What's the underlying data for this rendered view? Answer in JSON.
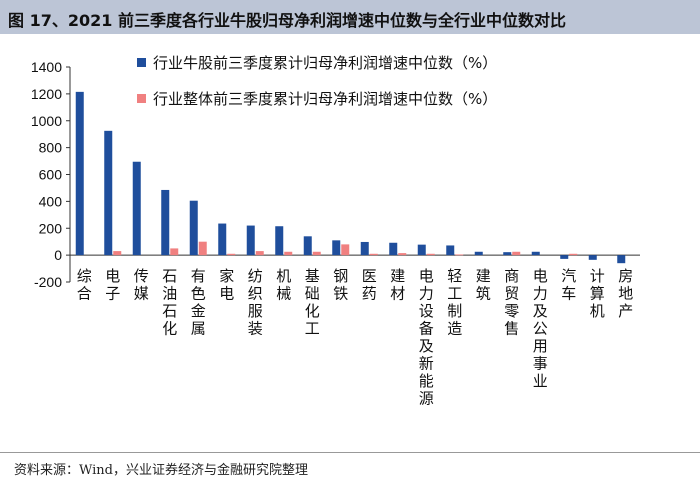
{
  "figure_title": "图 17、2021 前三季度各行业牛股归母净利润增速中位数与全行业中位数对比",
  "source": "资料来源：Wind，兴业证券经济与金融研究院整理",
  "chart_data": {
    "type": "bar",
    "title": "",
    "xlabel": "",
    "ylabel": "",
    "ylim": [
      -200,
      1400
    ],
    "yticks": [
      -200,
      0,
      200,
      400,
      600,
      800,
      1000,
      1200,
      1400
    ],
    "grid": false,
    "legend_position": "top-center",
    "categories": [
      "综合",
      "电子",
      "传媒",
      "石油石化",
      "有色金属",
      "家电",
      "纺织服装",
      "机械",
      "基础化工",
      "钢铁",
      "医药",
      "建材",
      "电力设备及新能源",
      "轻工制造",
      "建筑",
      "商贸零售",
      "电力及公用事业",
      "汽车",
      "计算机",
      "房地产"
    ],
    "series": [
      {
        "name": "行业牛股前三季度累计归母净利润增速中位数（%）",
        "color": "#1f4e9c",
        "values": [
          1215,
          925,
          695,
          485,
          405,
          235,
          220,
          215,
          140,
          110,
          98,
          92,
          78,
          72,
          25,
          22,
          25,
          -28,
          -35,
          -60
        ]
      },
      {
        "name": "行业整体前三季度累计归母净利润增速中位数（%）",
        "color": "#f08080",
        "values": [
          0,
          30,
          0,
          50,
          100,
          10,
          30,
          25,
          25,
          80,
          10,
          15,
          10,
          5,
          0,
          25,
          0,
          10,
          0,
          0
        ]
      }
    ]
  }
}
